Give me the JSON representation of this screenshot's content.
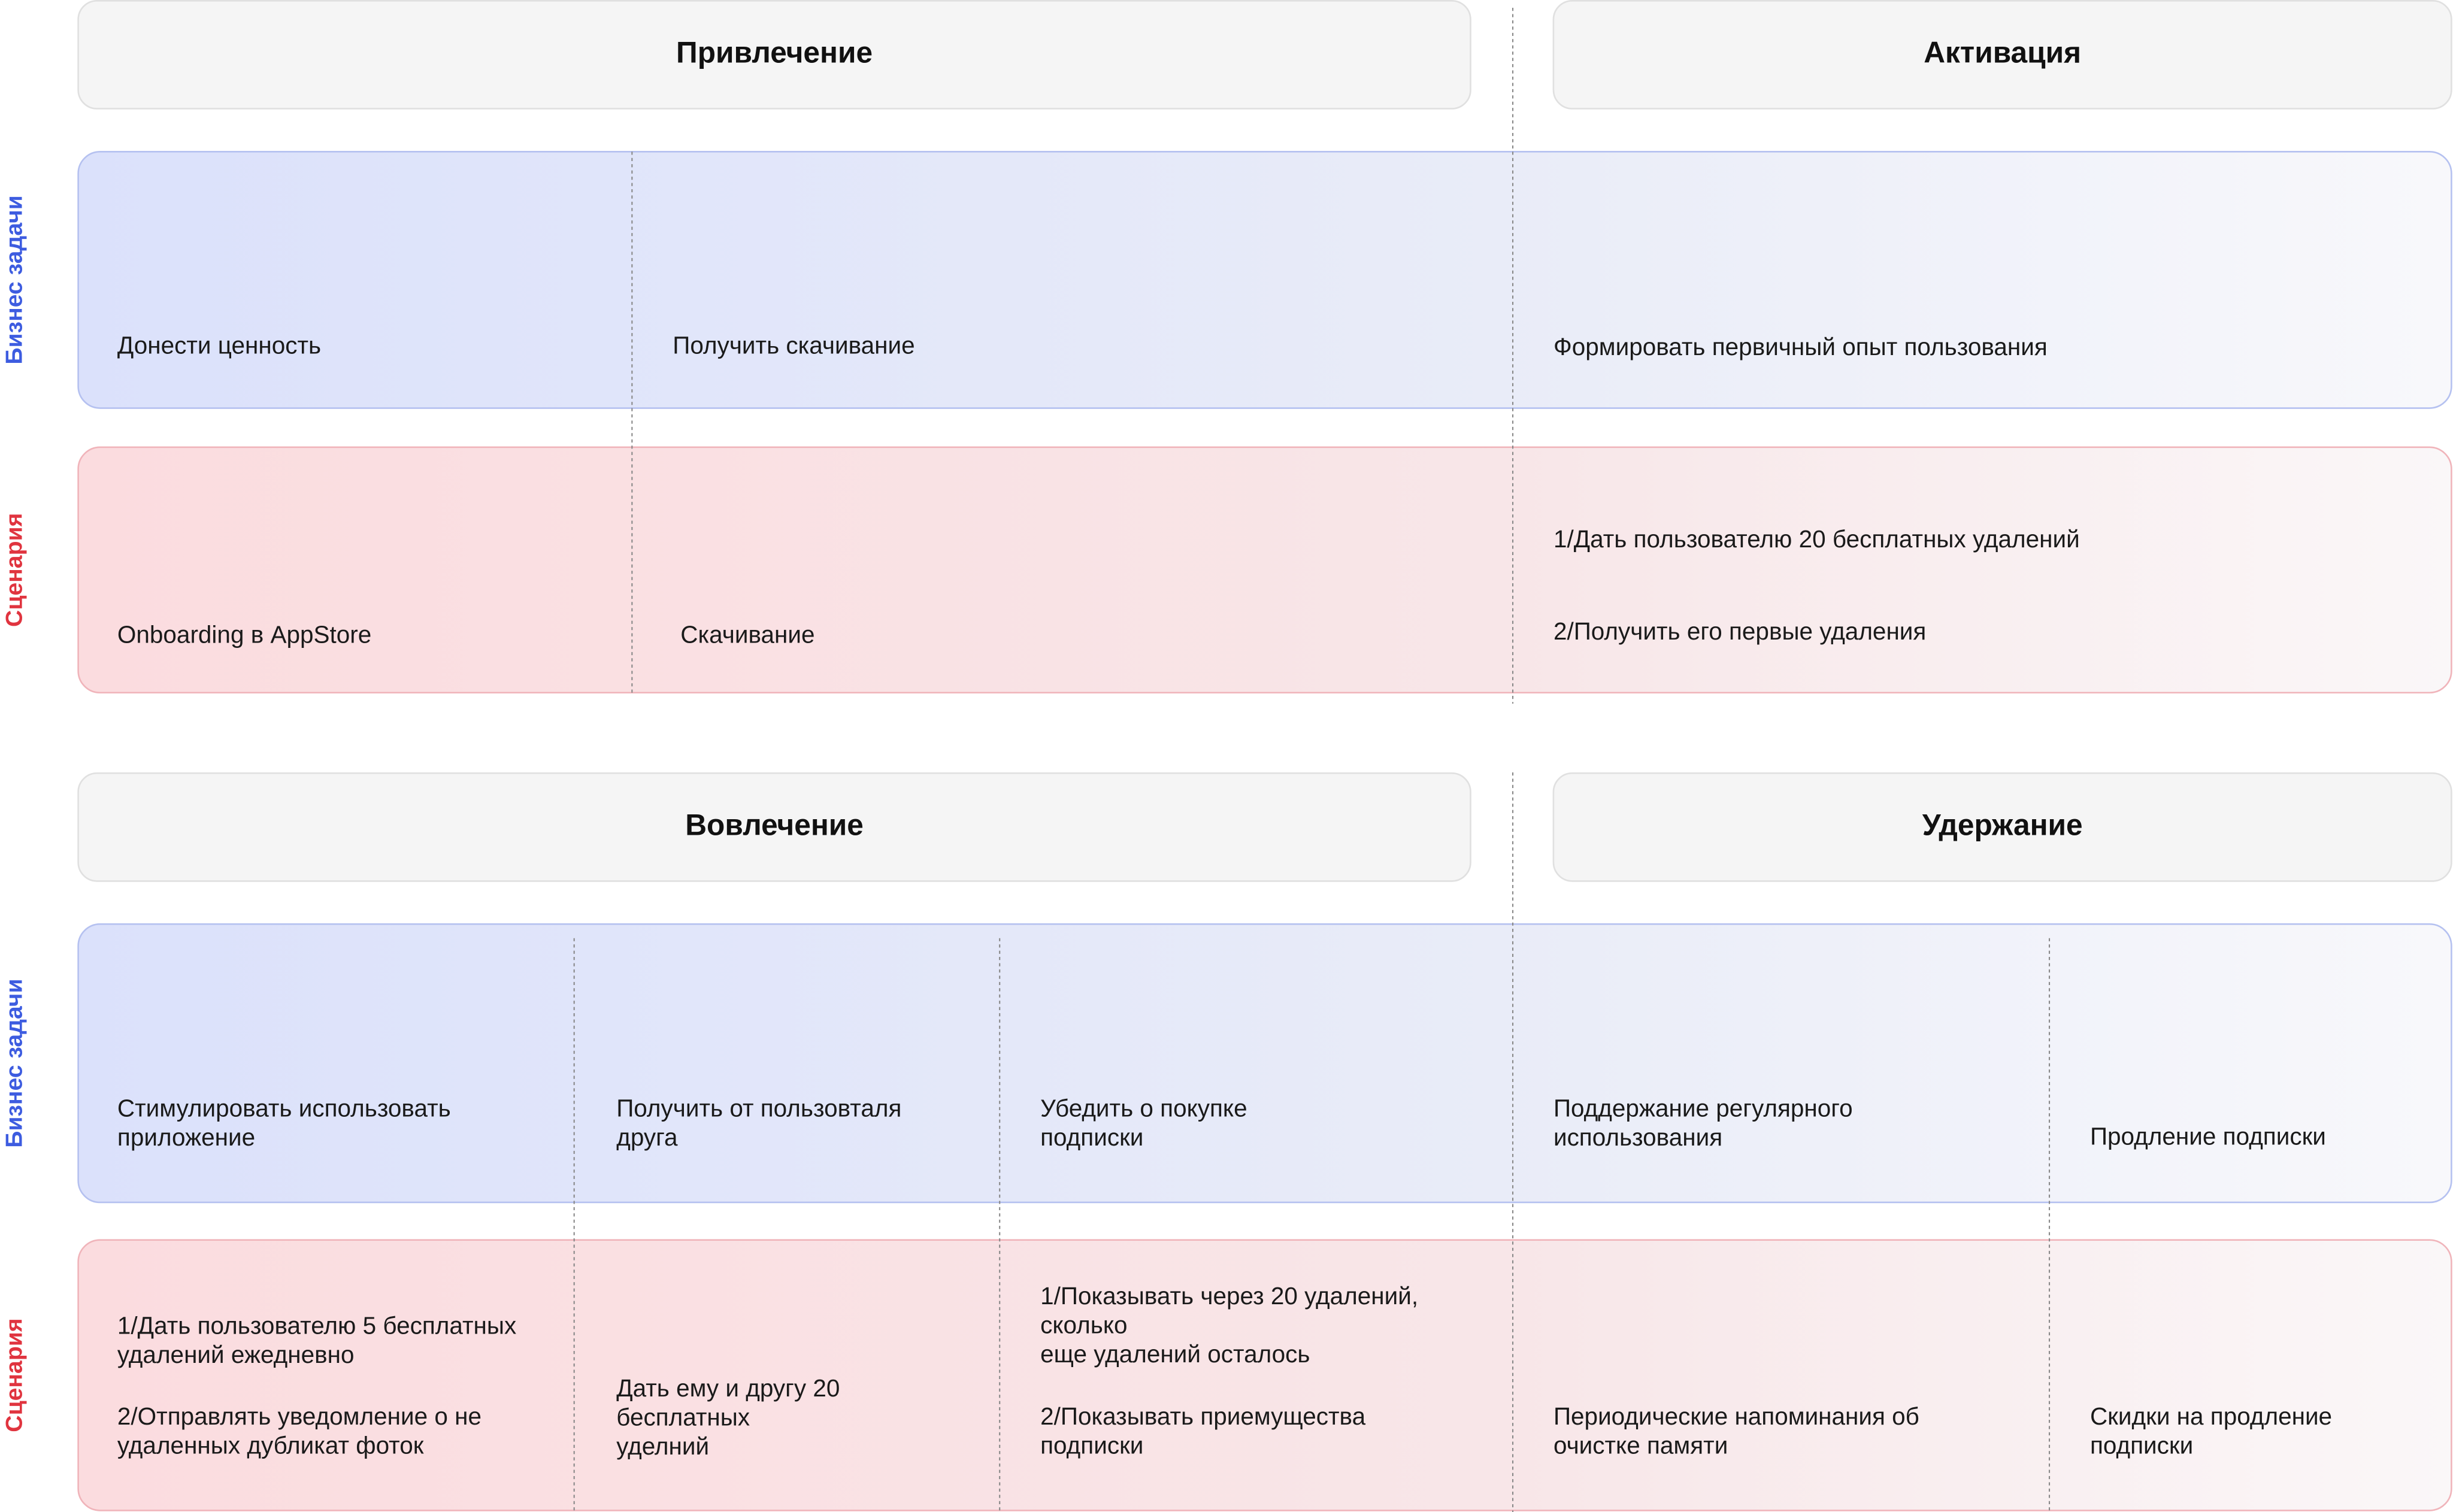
{
  "row_labels": {
    "tasks": "Бизнес задачи",
    "scenarios": "Сценария"
  },
  "sections": [
    {
      "stages": [
        "Привлечение",
        "Активация"
      ],
      "tasks": [
        {
          "lines": [
            "Донести ценность"
          ]
        },
        {
          "lines": [
            "Получить скачивание"
          ]
        },
        {
          "lines": [
            "Формировать первичный опыт пользования"
          ]
        }
      ],
      "scenarios": [
        {
          "blocks": [
            [
              "Onboarding в AppStore"
            ]
          ]
        },
        {
          "blocks": [
            [
              "Скачивание"
            ]
          ]
        },
        {
          "blocks": [
            [
              "1/Дать пользователю 20 бесплатных удалений"
            ],
            [
              "2/Получить его первые удаления"
            ]
          ]
        }
      ]
    },
    {
      "stages": [
        "Вовлечение",
        "Удержание"
      ],
      "tasks": [
        {
          "lines": [
            "Стимулировать использовать",
            "приложение"
          ]
        },
        {
          "lines": [
            "Получить от пользовталя",
            "друга"
          ]
        },
        {
          "lines": [
            "Убедить о покупке",
            "подписки"
          ]
        },
        {
          "lines": [
            "Поддержание регулярного",
            "использования"
          ]
        },
        {
          "lines": [
            "Продление подписки"
          ]
        }
      ],
      "scenarios": [
        {
          "blocks": [
            [
              "1/Дать пользователю 5 бесплатных",
              "удалений ежедневно"
            ],
            [
              "2/Отправлять уведомление о не",
              "удаленных дубликат фоток"
            ]
          ]
        },
        {
          "blocks": [
            [
              "Дать ему и другу 20",
              "бесплатных",
              "уделний"
            ]
          ]
        },
        {
          "blocks": [
            [
              "1/Показывать через 20 удалений,",
              "сколько",
              "еще удалений осталось"
            ],
            [
              "2/Показывать приемущества",
              "подписки"
            ]
          ]
        },
        {
          "blocks": [
            [
              "Периодические напоминания об",
              "очистке памяти"
            ]
          ]
        },
        {
          "blocks": [
            [
              "Скидки на продление",
              "подписки"
            ]
          ]
        }
      ]
    }
  ]
}
